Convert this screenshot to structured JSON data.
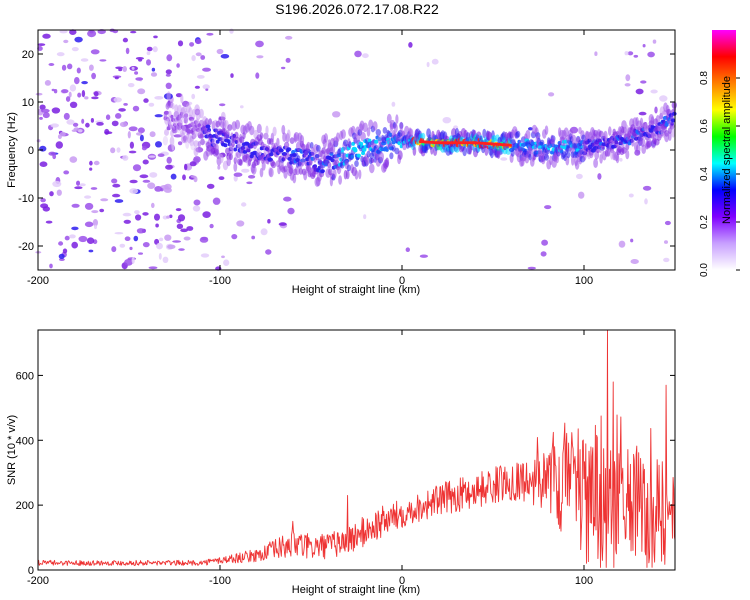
{
  "title": "S196.2026.072.17.08.R22",
  "chart_data": [
    {
      "type": "heatmap",
      "name": "spectrogram",
      "xlabel": "Height of straight line (km)",
      "ylabel": "Frequency (Hz)",
      "xlim": [
        -200,
        150
      ],
      "ylim": [
        -25,
        25
      ],
      "xticks": [
        -200,
        -100,
        0,
        100
      ],
      "yticks": [
        -20,
        -10,
        0,
        10,
        20
      ],
      "ridge": {
        "x": [
          -120,
          -100,
          -80,
          -60,
          -45,
          -35,
          -25,
          -15,
          0,
          20,
          40,
          60,
          80,
          100,
          120,
          140,
          150
        ],
        "y": [
          6,
          2,
          0,
          -1,
          -3,
          -2,
          0,
          1,
          2,
          1.5,
          1.5,
          1,
          0.5,
          0.5,
          2,
          4,
          7
        ]
      },
      "colorbar": {
        "label": "Normalized spectral amplitude",
        "range": [
          0,
          1
        ],
        "ticks": [
          "0.0",
          "0.2",
          "0.4",
          "0.6",
          "0.8"
        ],
        "colors": [
          "#ffffff",
          "#c8a0ff",
          "#7f00ff",
          "#0000ff",
          "#00ffff",
          "#00ff00",
          "#ffff00",
          "#ff8000",
          "#ff0000",
          "#ff00ff"
        ]
      }
    },
    {
      "type": "line",
      "name": "snr",
      "xlabel": "Height of straight line (km)",
      "ylabel": "SNR (10 * v/v)",
      "xlim": [
        -200,
        150
      ],
      "ylim": [
        0,
        740
      ],
      "xticks": [
        -200,
        -100,
        0,
        100
      ],
      "yticks": [
        0,
        200,
        400,
        600
      ],
      "color": "#ee3333",
      "envelope": {
        "x": [
          -200,
          -110,
          -100,
          -80,
          -60,
          -50,
          -40,
          -30,
          -20,
          -10,
          0,
          10,
          20,
          40,
          60,
          70,
          80,
          90,
          100,
          110,
          115,
          120,
          130,
          140,
          150
        ],
        "mean": [
          22,
          22,
          30,
          45,
          80,
          70,
          75,
          90,
          120,
          150,
          175,
          195,
          215,
          245,
          275,
          280,
          270,
          250,
          240,
          230,
          240,
          210,
          200,
          180,
          130
        ],
        "spread": [
          8,
          8,
          12,
          20,
          45,
          40,
          40,
          45,
          50,
          50,
          45,
          45,
          50,
          55,
          60,
          70,
          110,
          150,
          170,
          190,
          200,
          180,
          180,
          170,
          150
        ]
      },
      "peaks": [
        {
          "x": -60,
          "y": 150
        },
        {
          "x": -30,
          "y": 230
        },
        {
          "x": 113,
          "y": 740
        },
        {
          "x": 116,
          "y": 580
        },
        {
          "x": 145,
          "y": 570
        }
      ]
    }
  ]
}
